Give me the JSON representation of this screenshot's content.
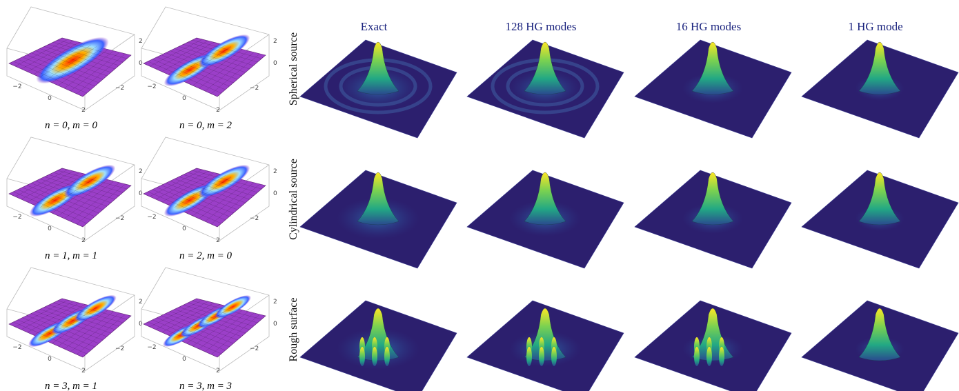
{
  "hg_plots": {
    "tick_labels": [
      "−2",
      "0",
      "2"
    ],
    "captions": [
      [
        "n = 0, m = 0",
        "n = 0, m = 2"
      ],
      [
        "n = 1, m = 1",
        "n = 2, m = 0"
      ],
      [
        "n = 3, m = 1",
        "n = 3, m = 3"
      ]
    ]
  },
  "comparison": {
    "columns": [
      "Exact",
      "128 HG modes",
      "16 HG modes",
      "1 HG mode"
    ],
    "rows": [
      "Spherical source",
      "Cylindrical source",
      "Rough surface"
    ]
  }
}
